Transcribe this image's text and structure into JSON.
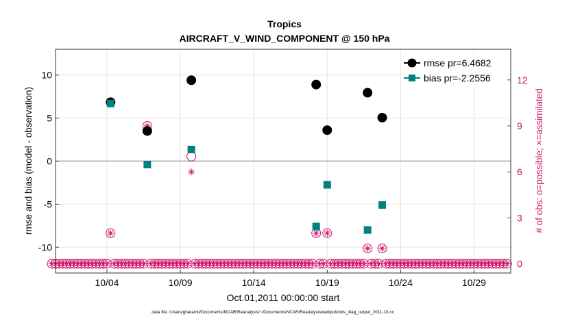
{
  "chart_data": {
    "type": "scatter",
    "title": "Tropics",
    "subtitle": "AIRCRAFT_V_WIND_COMPONENT @ 150 hPa",
    "xlabel": "Oct.01,2011 00:00:00 start",
    "ylabel_left": "rmse and bias (model - observation)",
    "ylabel_right": "# of obs: o=possible; ×=assimilated",
    "footer": "data file: /Users/gharamti/Documents/NCAR/Reanalysis/~/Documents/NCAR/Reanalysis/webpub/obs_diag_output_2011-10.nc",
    "xlim": [
      0.5,
      31.5
    ],
    "xticks": [
      {
        "value": 4,
        "label": "10/04"
      },
      {
        "value": 9,
        "label": "10/09"
      },
      {
        "value": 14,
        "label": "10/14"
      },
      {
        "value": 19,
        "label": "10/19"
      },
      {
        "value": 24,
        "label": "10/24"
      },
      {
        "value": 29,
        "label": "10/29"
      }
    ],
    "ylim_left": [
      -13,
      13
    ],
    "yticks_left": [
      -10,
      -5,
      0,
      5,
      10
    ],
    "ylim_right": [
      -0.6,
      14
    ],
    "yticks_right": [
      0,
      3,
      6,
      9,
      12
    ],
    "grid": true,
    "zero_line": true,
    "legend_position": "top-right",
    "colors": {
      "rmse": "#000000",
      "bias": "#008080",
      "obs": "#cc1166",
      "grid": "#e4e4e4",
      "zero_line": "#bbbbbb"
    },
    "series": [
      {
        "name": "rmse",
        "legend": "rmse pr=6.4682",
        "points": [
          [
            4.25,
            6.85
          ],
          [
            6.75,
            3.5
          ],
          [
            9.75,
            9.4
          ],
          [
            18.25,
            8.9
          ],
          [
            19.0,
            3.6
          ],
          [
            21.75,
            7.95
          ],
          [
            22.75,
            5.05
          ]
        ]
      },
      {
        "name": "bias",
        "legend": "bias pr=-2.2556",
        "points": [
          [
            4.25,
            6.7
          ],
          [
            6.75,
            -0.4
          ],
          [
            9.75,
            1.35
          ],
          [
            18.25,
            -7.6
          ],
          [
            19.0,
            -2.75
          ],
          [
            21.75,
            -8.0
          ],
          [
            22.75,
            -5.1
          ]
        ]
      }
    ],
    "obs_possible": {
      "start": 0.25,
      "step": 0.25,
      "base": 0,
      "nonzero": [
        [
          4.25,
          2
        ],
        [
          6.75,
          9
        ],
        [
          9.75,
          7
        ],
        [
          18.25,
          2
        ],
        [
          19.0,
          2
        ],
        [
          21.75,
          1
        ],
        [
          22.75,
          1
        ]
      ]
    },
    "obs_assimilated": {
      "start": 0.25,
      "step": 0.25,
      "base": 0,
      "nonzero": [
        [
          4.25,
          2
        ],
        [
          6.75,
          9
        ],
        [
          9.75,
          6
        ],
        [
          18.25,
          2
        ],
        [
          19.0,
          2
        ],
        [
          21.75,
          1
        ],
        [
          22.75,
          1
        ]
      ]
    }
  }
}
